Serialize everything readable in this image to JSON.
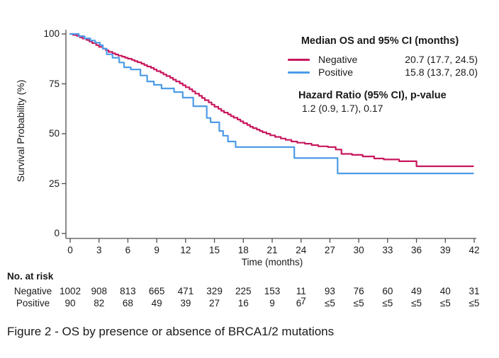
{
  "figure": {
    "caption": "Figure 2 - OS by presence or absence of BRCA1/2 mutations"
  },
  "legend": {
    "title": "Median OS and 95% CI (months)",
    "rows": [
      {
        "name": "Negative",
        "value": "20.7 (17.7, 24.5)"
      },
      {
        "name": "Positive",
        "value": "15.8 (13.7, 28.0)"
      }
    ],
    "hazard_title": "Hazard Ratio (95% CI), p-value",
    "hazard_value": "1.2 (0.9, 1.7), 0.17"
  },
  "risk_table": {
    "header": "No. at risk",
    "rows": [
      {
        "label": "Negative",
        "values": [
          "1002",
          "908",
          "813",
          "665",
          "471",
          "329",
          "225",
          "153",
          "11",
          "93",
          "76",
          "60",
          "49",
          "40",
          "31"
        ]
      },
      {
        "label": "Positive",
        "values": [
          "90",
          "82",
          "68",
          "49",
          "39",
          "27",
          "16",
          "9",
          {
            "main": "6",
            "sup": "7"
          },
          "≤5",
          "≤5",
          "≤5",
          "≤5",
          "≤5",
          "≤5"
        ]
      }
    ]
  },
  "chart_data": {
    "type": "line",
    "subtype": "kaplan-meier-step",
    "title": "",
    "xlabel": "Time (months)",
    "ylabel": "Survival Probability (%)",
    "xlim": [
      0,
      42
    ],
    "ylim": [
      0,
      100
    ],
    "xticks": [
      0,
      3,
      6,
      9,
      12,
      15,
      18,
      21,
      24,
      27,
      30,
      33,
      36,
      39,
      42
    ],
    "yticks": [
      0,
      25,
      50,
      75,
      100
    ],
    "grid": false,
    "legend_position": "top-right",
    "series": [
      {
        "name": "Negative",
        "color": "#C8175E",
        "median_os": "20.7 (17.7, 24.5)",
        "points": [
          [
            0,
            100
          ],
          [
            0.3,
            99.5
          ],
          [
            0.7,
            99
          ],
          [
            1,
            98.3
          ],
          [
            1.3,
            97.7
          ],
          [
            1.7,
            97
          ],
          [
            2,
            96.2
          ],
          [
            2.3,
            95.4
          ],
          [
            2.7,
            94.4
          ],
          [
            3,
            93.5
          ],
          [
            3.4,
            92.6
          ],
          [
            3.7,
            91.8
          ],
          [
            4,
            91
          ],
          [
            4.4,
            90.3
          ],
          [
            4.7,
            89.7
          ],
          [
            5,
            89.1
          ],
          [
            5.4,
            88.6
          ],
          [
            5.7,
            88.1
          ],
          [
            6,
            87.6
          ],
          [
            6.4,
            87
          ],
          [
            6.7,
            86.4
          ],
          [
            7,
            85.8
          ],
          [
            7.4,
            85.1
          ],
          [
            7.7,
            84.4
          ],
          [
            8,
            83.7
          ],
          [
            8.4,
            83
          ],
          [
            8.7,
            82.2
          ],
          [
            9,
            81.4
          ],
          [
            9.4,
            80.6
          ],
          [
            9.7,
            79.7
          ],
          [
            10,
            78.9
          ],
          [
            10.4,
            78
          ],
          [
            10.7,
            77.1
          ],
          [
            11,
            76.2
          ],
          [
            11.4,
            75.2
          ],
          [
            11.7,
            74.3
          ],
          [
            12,
            73.3
          ],
          [
            12.4,
            72.3
          ],
          [
            12.7,
            71.2
          ],
          [
            13,
            70.1
          ],
          [
            13.4,
            69
          ],
          [
            13.7,
            67.9
          ],
          [
            14,
            66.8
          ],
          [
            14.4,
            65.7
          ],
          [
            14.7,
            64.6
          ],
          [
            15,
            63.5
          ],
          [
            15.4,
            62.5
          ],
          [
            15.7,
            61.5
          ],
          [
            16,
            60.6
          ],
          [
            16.4,
            59.7
          ],
          [
            16.7,
            58.8
          ],
          [
            17,
            58
          ],
          [
            17.4,
            57.1
          ],
          [
            17.7,
            56.2
          ],
          [
            18,
            55.3
          ],
          [
            18.4,
            54.4
          ],
          [
            18.7,
            53.5
          ],
          [
            19,
            52.8
          ],
          [
            19.4,
            52.1
          ],
          [
            19.7,
            51.4
          ],
          [
            20,
            50.7
          ],
          [
            20.4,
            50
          ],
          [
            20.8,
            49.2
          ],
          [
            21.3,
            48.4
          ],
          [
            21.9,
            47.6
          ],
          [
            22.4,
            46.9
          ],
          [
            23,
            46.1
          ],
          [
            23.6,
            45.5
          ],
          [
            24.4,
            45
          ],
          [
            25.1,
            44.3
          ],
          [
            25.8,
            43.7
          ],
          [
            26.8,
            43.3
          ],
          [
            27.6,
            42.1
          ],
          [
            28.2,
            39.9
          ],
          [
            29.3,
            39.4
          ],
          [
            30.4,
            38.6
          ],
          [
            31.6,
            37.6
          ],
          [
            32.6,
            37.1
          ],
          [
            34.2,
            36.2
          ],
          [
            36,
            33.7
          ],
          [
            41.9,
            33.7
          ]
        ]
      },
      {
        "name": "Positive",
        "color": "#4D9BE8",
        "median_os": "15.8 (13.7, 28.0)",
        "points": [
          [
            0,
            100
          ],
          [
            0.9,
            98.9
          ],
          [
            1.5,
            97.8
          ],
          [
            2.1,
            96.7
          ],
          [
            2.6,
            95.6
          ],
          [
            3.1,
            94.4
          ],
          [
            3.4,
            92.6
          ],
          [
            3.8,
            89.8
          ],
          [
            4.4,
            88.1
          ],
          [
            5.1,
            85.7
          ],
          [
            5.6,
            83.3
          ],
          [
            6.3,
            82.2
          ],
          [
            7.3,
            79.2
          ],
          [
            8,
            76.2
          ],
          [
            8.7,
            74.5
          ],
          [
            9.5,
            72.7
          ],
          [
            10.8,
            70.9
          ],
          [
            11.7,
            68.1
          ],
          [
            12.8,
            63.8
          ],
          [
            14.2,
            57.9
          ],
          [
            14.6,
            55.7
          ],
          [
            15.5,
            51.4
          ],
          [
            15.9,
            49
          ],
          [
            16.4,
            46.1
          ],
          [
            17.2,
            43.3
          ],
          [
            23.3,
            37.8
          ],
          [
            27.8,
            30.1
          ],
          [
            41.9,
            30.1
          ]
        ]
      }
    ],
    "hazard_ratio": "1.2 (0.9, 1.7), 0.17"
  },
  "colors": {
    "axis": "#4d4d4d",
    "text": "#1a1a1a"
  }
}
